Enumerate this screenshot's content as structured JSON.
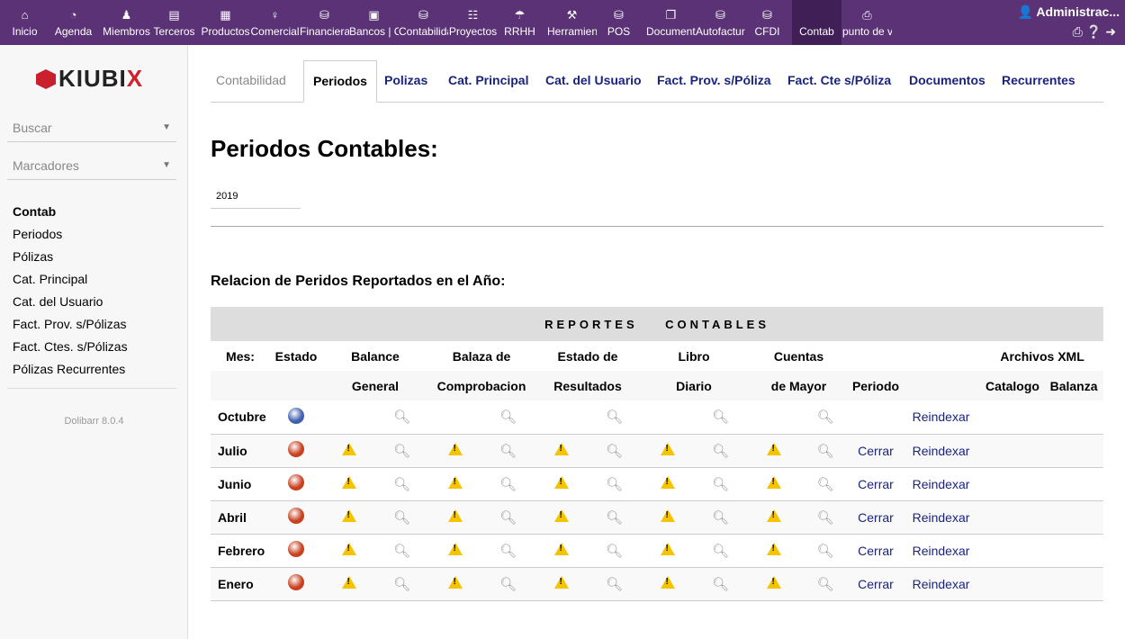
{
  "topnav": {
    "items": [
      {
        "label": "Inicio",
        "icon": "home-icon"
      },
      {
        "label": "Agenda",
        "icon": "agenda-icon"
      },
      {
        "label": "Miembros",
        "icon": "members-icon"
      },
      {
        "label": "Terceros",
        "icon": "thirdparty-icon"
      },
      {
        "label": "Productos",
        "icon": "products-icon"
      },
      {
        "label": "Comercial",
        "icon": "commercial-icon"
      },
      {
        "label": "Financiera",
        "icon": "finance-icon"
      },
      {
        "label": "Bancos | Cajas",
        "icon": "bank-icon"
      },
      {
        "label": "Contabilidad",
        "icon": "accounting-icon"
      },
      {
        "label": "Proyectos",
        "icon": "projects-icon"
      },
      {
        "label": "RRHH",
        "icon": "hrm-icon"
      },
      {
        "label": "Herramientas",
        "icon": "tools-icon"
      },
      {
        "label": "POS",
        "icon": "database-icon"
      },
      {
        "label": "Documentos",
        "icon": "documents-icon"
      },
      {
        "label": "Autofactura",
        "icon": "database-icon"
      },
      {
        "label": "CFDI",
        "icon": "database-icon"
      },
      {
        "label": "Contab",
        "icon": ""
      },
      {
        "label": "punto de venta",
        "icon": "printer-icon"
      }
    ],
    "active": "Contab",
    "user": "Administrac...",
    "accent": "#5a3275"
  },
  "sidebar": {
    "logo": "KIUBIX",
    "search_label": "Buscar",
    "bookmarks_label": "Marcadores",
    "menu_title": "Contab",
    "items": [
      "Periodos",
      "Pólizas",
      "Cat. Principal",
      "Cat. del Usuario",
      "Fact. Prov. s/Pólizas",
      "Fact. Ctes. s/Pólizas",
      "Pólizas Recurrentes"
    ],
    "version": "Dolibarr 8.0.4"
  },
  "tabs": [
    "Contabilidad",
    "Periodos",
    "Polizas",
    "Cat. Principal",
    "Cat. del Usuario",
    "Fact. Prov. s/Póliza",
    "Fact. Cte s/Póliza",
    "Documentos",
    "Recurrentes"
  ],
  "active_tab": "Periodos",
  "main": {
    "title": "Periodos Contables:",
    "year": "2019",
    "subtitle": "Relacion de Peridos Reportados en el Año:"
  },
  "table": {
    "band": "REPORTES    CONTABLES",
    "h1": {
      "mes": "Mes:",
      "estado": "Estado",
      "balance": "Balance",
      "balanza": "Balaza de",
      "resultados": "Estado de",
      "libro": "Libro",
      "cuentas": "Cuentas",
      "xml": "Archivos XML"
    },
    "h2": {
      "balance": "General",
      "balanza": "Comprobacion",
      "resultados": "Resultados",
      "libro": "Diario",
      "cuentas": "de Mayor",
      "periodo": "Periodo",
      "catalogo": "Catalogo",
      "balanza_xml": "Balanza"
    },
    "rows": [
      {
        "mes": "Octubre",
        "estado": "open",
        "warnings": false,
        "cerrar": "",
        "reindexar": "Reindexar"
      },
      {
        "mes": "Julio",
        "estado": "closed",
        "warnings": true,
        "cerrar": "Cerrar",
        "reindexar": "Reindexar"
      },
      {
        "mes": "Junio",
        "estado": "closed",
        "warnings": true,
        "cerrar": "Cerrar",
        "reindexar": "Reindexar"
      },
      {
        "mes": "Abril",
        "estado": "closed",
        "warnings": true,
        "cerrar": "Cerrar",
        "reindexar": "Reindexar"
      },
      {
        "mes": "Febrero",
        "estado": "closed",
        "warnings": true,
        "cerrar": "Cerrar",
        "reindexar": "Reindexar"
      },
      {
        "mes": "Enero",
        "estado": "closed",
        "warnings": true,
        "cerrar": "Cerrar",
        "reindexar": "Reindexar"
      }
    ],
    "colors": {
      "open": "#3f5fb0",
      "closed": "#c9401f",
      "warning": "#f5c400"
    }
  }
}
